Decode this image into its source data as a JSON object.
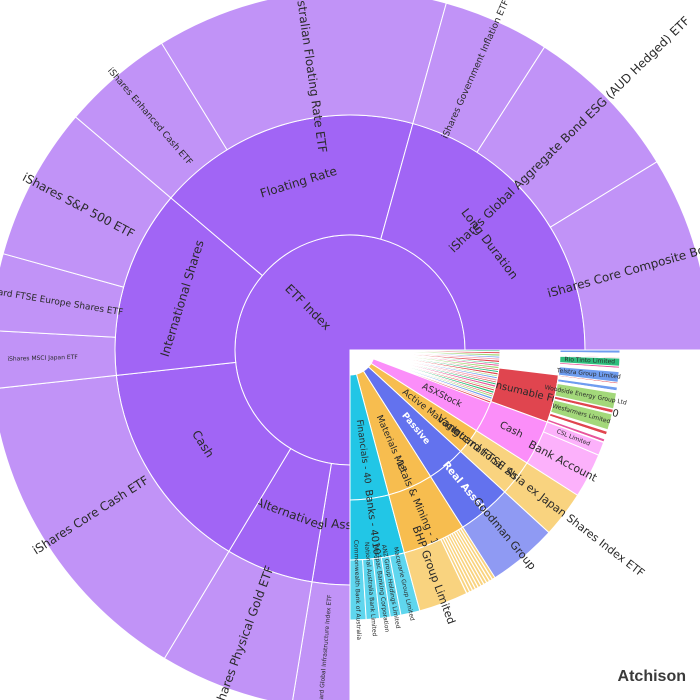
{
  "brand": "Atchison",
  "colors": {
    "white": "#ffffff",
    "etf_inner": "#a165f5",
    "etf_outer": "#c193f7",
    "passive": "#6372ee",
    "passive_outer": "#8f9af3",
    "banks": "#22c6e6",
    "banks_outer": "#5fd6ee",
    "materials": "#f7bd4f",
    "materials_outer": "#f9d37f",
    "ism": "#fb8ef9",
    "ism_outer": "#fcb1fb",
    "asx_stock": "#e8559c",
    "reds": "#e0454f",
    "greens": "#2fbd7d",
    "lightgreens": "#a3d87a",
    "blues": "#6f9df0",
    "misc": "#f3a0b4"
  },
  "chart_data": {
    "type": "sunburst",
    "title": "",
    "center": {
      "label": "ETF Index",
      "share": 0.5
    },
    "level1": [
      {
        "label": "Floating Rate",
        "share": 0.105
      },
      {
        "label": "Long Duration",
        "share": 0.12
      },
      {
        "label": "International Shares",
        "share": 0.075
      },
      {
        "label": "Cash",
        "share": 0.085
      },
      {
        "label": "Alternatives",
        "share": 0.035
      },
      {
        "label": "Real Assets",
        "share": 0.015
      }
    ],
    "level2": [
      {
        "label": "VanEck Australian Floating Rate ETF",
        "share": 0.065
      },
      {
        "label": "iShares Government Inflation ETF",
        "share": 0.03
      },
      {
        "label": "iShares Global Aggregate Bond ESG (AUD Hedged) ETF",
        "share": 0.045
      },
      {
        "label": "iShares Core Composite Bond ETF",
        "share": 0.055
      },
      {
        "label": "iShares Enhanced Cash ETF",
        "share": 0.025
      },
      {
        "label": "iShares S&P 500 ETF",
        "share": 0.04
      },
      {
        "label": "Vanguard FTSE Europe Shares ETF",
        "share": 0.02
      },
      {
        "label": "iShares MSCI Japan ETF",
        "share": 0.015
      },
      {
        "label": "iShares Core Cash ETF",
        "share": 0.06
      },
      {
        "label": "iShares Physical Gold ETF",
        "share": 0.035
      },
      {
        "label": "Vanguard Global Infrastructure Index ETF",
        "share": 0.015
      }
    ],
    "passive_half": {
      "inner": [
        {
          "label": "Financials - 40",
          "share": 0.03
        },
        {
          "label": "Materials - 15",
          "share": 0.035
        },
        {
          "label": "Passive",
          "share": 0.03
        },
        {
          "label": "Active Manager",
          "share": 0.02
        },
        {
          "label": "ASXStock",
          "share": 0.025
        }
      ],
      "middle": [
        {
          "label": "Banks - 401010",
          "share": 0.025
        },
        {
          "label": "Metals & Mining - 151040",
          "share": 0.045
        },
        {
          "label": "Real Assets",
          "share": 0.04
        },
        {
          "label": "International Shares",
          "share": 0.05
        },
        {
          "label": "Cash",
          "share": 0.045
        },
        {
          "label": "Oil, Gas & Consumable Fuels - 101020",
          "share": 0.03
        }
      ],
      "outer": [
        {
          "label": "Commonwealth Bank of Australia",
          "share": 0.012
        },
        {
          "label": "National Australia Bank Limited",
          "share": 0.01
        },
        {
          "label": "Westpac Banking Corporation",
          "share": 0.009
        },
        {
          "label": "ANZ Group Holdings Limited",
          "share": 0.008
        },
        {
          "label": "Macquarie Group Limited",
          "share": 0.008
        },
        {
          "label": "BHP Group Limited",
          "share": 0.02
        },
        {
          "label": "Goodman Group",
          "share": 0.012
        },
        {
          "label": "Vanguard FTSE Asia ex Japan Shares Index ETF",
          "share": 0.025
        },
        {
          "label": "Bank Account",
          "share": 0.035
        },
        {
          "label": "CSL Limited",
          "share": 0.012
        },
        {
          "label": "Wesfarmers Limited",
          "share": 0.01
        },
        {
          "label": "Woodside Energy Group Ltd",
          "share": 0.01
        },
        {
          "label": "Telstra Group Limited",
          "share": 0.008
        },
        {
          "label": "Rio Tinto Limited",
          "share": 0.008
        }
      ]
    }
  }
}
